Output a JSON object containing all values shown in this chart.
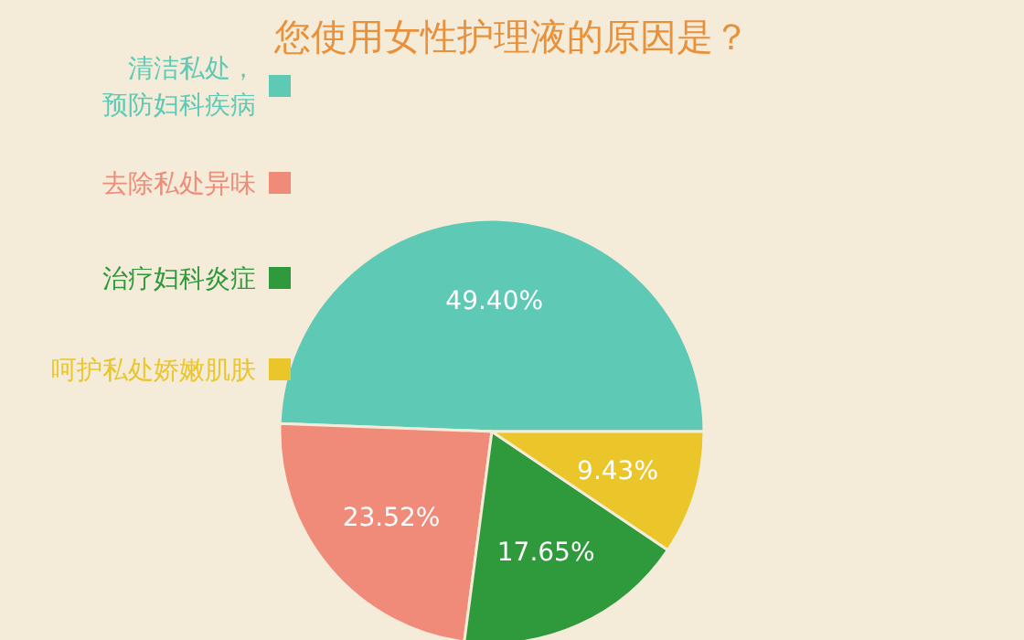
{
  "chart_data": {
    "type": "pie",
    "title": "您使用女性护理液的原因是？",
    "categories": [
      "清洁私处，预防妇科疾病",
      "去除私处异味",
      "治疗妇科炎症",
      "呵护私处娇嫩肌肤"
    ],
    "values": [
      49.4,
      23.52,
      17.65,
      9.43
    ],
    "colors": [
      "#5ec9b5",
      "#ef8b78",
      "#2f9a3b",
      "#eac62a"
    ],
    "value_labels": [
      "49.40%",
      "23.52%",
      "17.65%",
      "9.43%"
    ],
    "legend": "left"
  }
}
